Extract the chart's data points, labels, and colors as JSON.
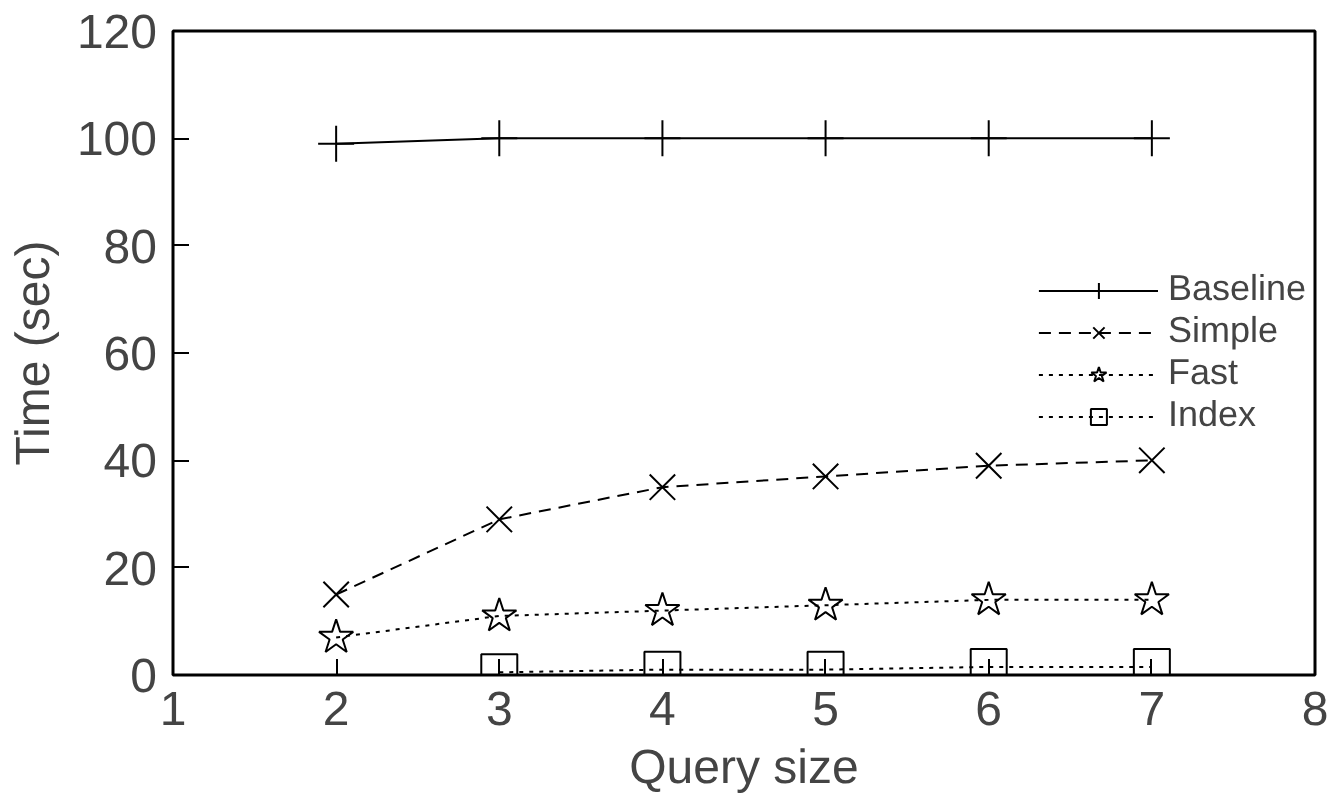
{
  "chart_data": {
    "type": "line",
    "xlabel": "Query size",
    "ylabel": "Time (sec)",
    "xlim": [
      1,
      8
    ],
    "ylim": [
      0,
      120
    ],
    "xticks": [
      1,
      2,
      3,
      4,
      5,
      6,
      7,
      8
    ],
    "yticks": [
      0,
      20,
      40,
      60,
      80,
      100,
      120
    ],
    "legend": "right",
    "grid": false,
    "series": [
      {
        "name": "Baseline",
        "color": "#000000",
        "marker": "cross",
        "line_style": "solid",
        "x": [
          2,
          3,
          4,
          5,
          6,
          7
        ],
        "values": [
          99,
          100,
          100,
          100,
          100,
          100
        ]
      },
      {
        "name": "Simple",
        "color": "#000000",
        "marker": "x",
        "line_style": "dashed",
        "x": [
          2,
          3,
          4,
          5,
          6,
          7
        ],
        "values": [
          15,
          29,
          35,
          37,
          39,
          40
        ]
      },
      {
        "name": "Fast",
        "color": "#000000",
        "marker": "star",
        "line_style": "dotted",
        "x": [
          2,
          3,
          4,
          5,
          6,
          7
        ],
        "values": [
          7,
          11,
          12,
          13,
          14,
          14
        ]
      },
      {
        "name": "Index",
        "color": "#000000",
        "marker": "square",
        "line_style": "dotted",
        "x": [
          3,
          4,
          5,
          6,
          7
        ],
        "values": [
          0.5,
          1,
          1,
          1.5,
          1.5
        ]
      }
    ]
  }
}
